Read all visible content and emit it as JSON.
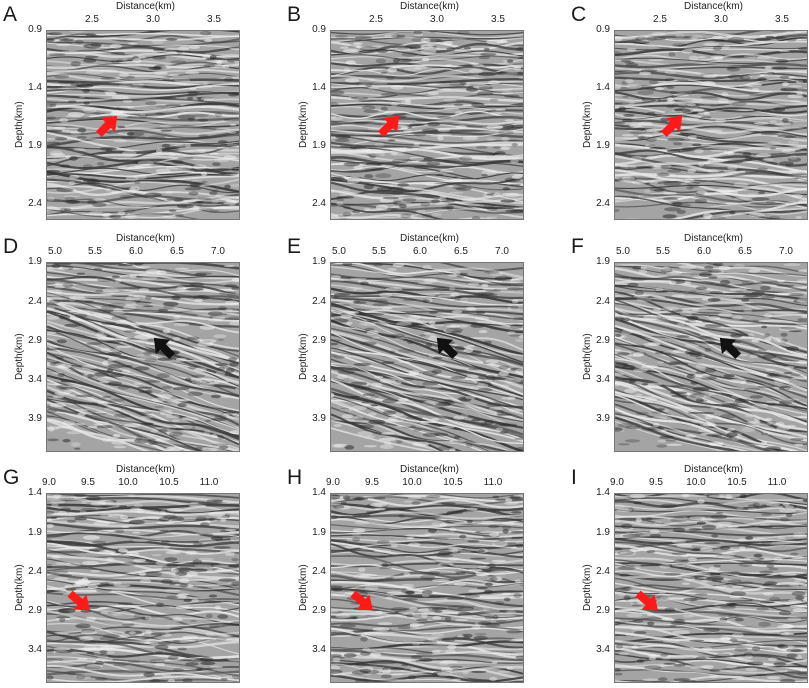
{
  "figure": {
    "rows": [
      {
        "panels": [
          "A",
          "B",
          "C"
        ],
        "x_title": "Distance(km)",
        "x_ticks": [
          "2.5",
          "3.0",
          "3.5"
        ],
        "y_title": "Depth(km)",
        "y_ticks": [
          "0.9",
          "1.4",
          "1.9",
          "2.4"
        ],
        "arrow_color": "#ff1a1a",
        "arrow_direction": "up-right"
      },
      {
        "panels": [
          "D",
          "E",
          "F"
        ],
        "x_title": "Distance(km)",
        "x_ticks": [
          "5.0",
          "5.5",
          "6.0",
          "6.5",
          "7.0"
        ],
        "y_title": "Depth(km)",
        "y_ticks": [
          "1.9",
          "2.4",
          "2.9",
          "3.4",
          "3.9"
        ],
        "arrow_color": "#111111",
        "arrow_direction": "up-left"
      },
      {
        "panels": [
          "G",
          "H",
          "I"
        ],
        "x_title": "Distance(km)",
        "x_ticks": [
          "9.0",
          "9.5",
          "10.0",
          "10.5",
          "11.0"
        ],
        "y_title": "Depth(km)",
        "y_ticks": [
          "1.4",
          "1.9",
          "2.4",
          "2.9",
          "3.4"
        ],
        "arrow_color": "#ff1a1a",
        "arrow_direction": "down-right"
      }
    ]
  }
}
